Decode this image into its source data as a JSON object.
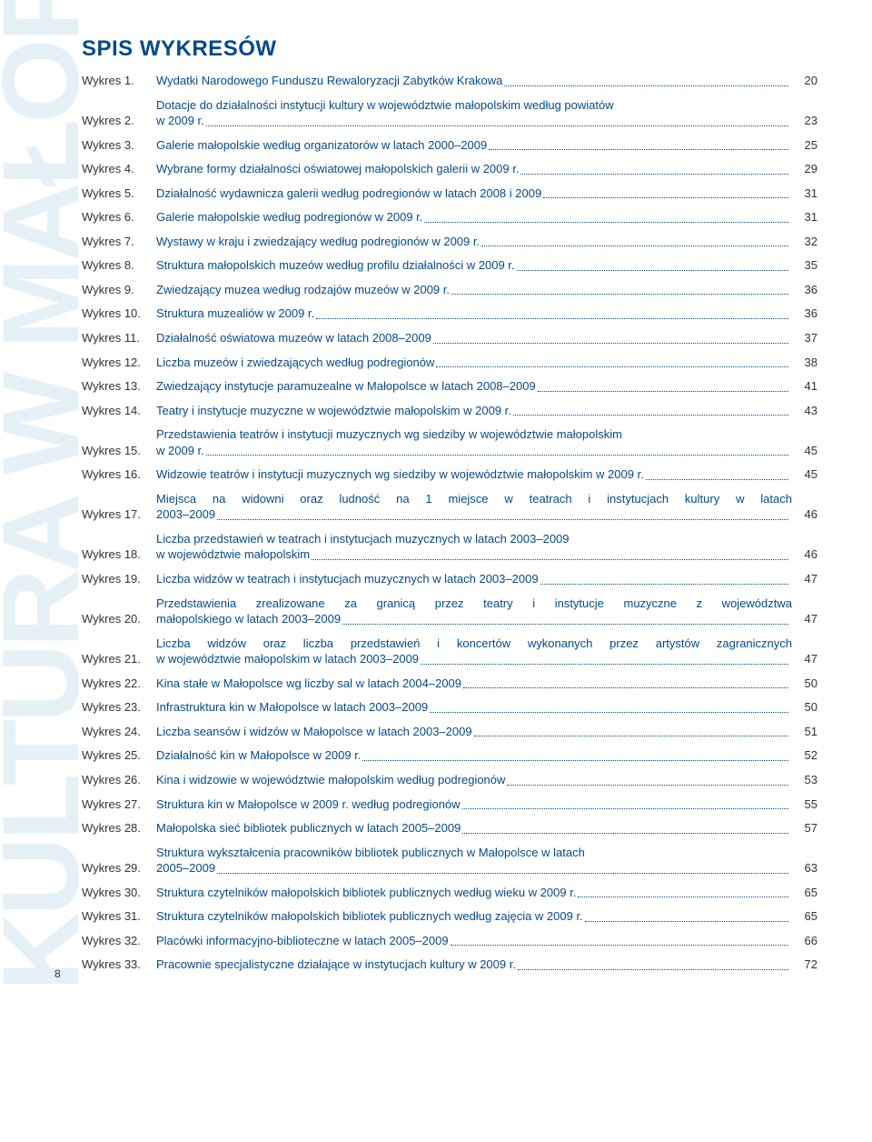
{
  "vertical_text": "KULTURA W MAŁOPOLSCE",
  "title": "SPIS WYKRESÓW",
  "label_prefix": "Wykres",
  "page_number": "8",
  "colors": {
    "heading": "#054a8a",
    "entry_label": "#054a8a",
    "prefix": "#333",
    "leader": "#054a8a",
    "pagecol": "#333"
  },
  "entries": [
    {
      "n": "1.",
      "desc": "Wydatki Narodowego Funduszu Rewaloryzacji Zabytków Krakowa",
      "pg": "20"
    },
    {
      "n": "2.",
      "desc": "Dotacje do działalności instytucji kultury w województwie małopolskim według powiatów",
      "desc2": "w 2009 r.",
      "pg": "23"
    },
    {
      "n": "3.",
      "desc": "Galerie małopolskie według organizatorów w latach 2000–2009",
      "pg": "25"
    },
    {
      "n": "4.",
      "desc": "Wybrane formy działalności oświatowej małopolskich galerii w 2009 r.",
      "pg": "29"
    },
    {
      "n": "5.",
      "desc": "Działalność wydawnicza galerii według podregionów w latach 2008 i 2009",
      "pg": "31"
    },
    {
      "n": "6.",
      "desc": "Galerie małopolskie według podregionów w 2009 r.",
      "pg": "31"
    },
    {
      "n": "7.",
      "desc": "Wystawy w kraju i zwiedzający według podregionów w 2009 r.",
      "pg": "32"
    },
    {
      "n": "8.",
      "desc": "Struktura małopolskich muzeów według profilu działalności w 2009 r.",
      "pg": "35"
    },
    {
      "n": "9.",
      "desc": "Zwiedzający muzea według rodzajów muzeów w 2009 r.",
      "pg": "36"
    },
    {
      "n": "10.",
      "desc": "Struktura muzealiów w 2009 r.",
      "pg": "36"
    },
    {
      "n": "11.",
      "desc": "Działalność oświatowa muzeów w latach 2008–2009",
      "pg": "37"
    },
    {
      "n": "12.",
      "desc": "Liczba muzeów i zwiedzających według podregionów",
      "pg": "38"
    },
    {
      "n": "13.",
      "desc": "Zwiedzający instytucje paramuzealne w Małopolsce w latach 2008–2009",
      "pg": "41"
    },
    {
      "n": "14.",
      "desc": "Teatry i instytucje muzyczne w województwie małopolskim w 2009 r.",
      "pg": "43"
    },
    {
      "n": "15.",
      "desc": "Przedstawienia teatrów i instytucji muzycznych wg siedziby w województwie małopolskim",
      "desc2": "w 2009 r.",
      "pg": "45"
    },
    {
      "n": "16.",
      "desc": "Widzowie teatrów i instytucji muzycznych wg siedziby w województwie małopolskim w 2009 r.",
      "pg": "45",
      "tight": true
    },
    {
      "n": "17.",
      "desc": "Miejsca na widowni oraz ludność na 1 miejsce w teatrach i instytucjach kultury w latach",
      "desc2": "2003–2009",
      "pg": "46",
      "just": true
    },
    {
      "n": "18.",
      "desc": "Liczba przedstawień w teatrach i instytucjach muzycznych w latach 2003–2009",
      "desc2": "w województwie małopolskim",
      "pg": "46"
    },
    {
      "n": "19.",
      "desc": "Liczba widzów w teatrach i instytucjach muzycznych w latach 2003–2009",
      "pg": "47"
    },
    {
      "n": "20.",
      "desc": "Przedstawienia zrealizowane za granicą przez teatry i instytucje muzyczne z województwa",
      "desc2": "małopolskiego w latach 2003–2009",
      "pg": "47",
      "just": true
    },
    {
      "n": "21.",
      "desc": "Liczba widzów oraz liczba przedstawień i koncertów wykonanych przez artystów zagranicznych",
      "desc2": "w województwie małopolskim w latach 2003–2009",
      "pg": "47",
      "just": true
    },
    {
      "n": "22.",
      "desc": "Kina stałe w Małopolsce wg liczby sal w latach 2004–2009",
      "pg": "50"
    },
    {
      "n": "23.",
      "desc": "Infrastruktura kin w Małopolsce w latach 2003–2009",
      "pg": "50"
    },
    {
      "n": "24.",
      "desc": "Liczba seansów i widzów w Małopolsce w latach 2003–2009",
      "pg": "51"
    },
    {
      "n": "25.",
      "desc": "Działalność kin w Małopolsce w 2009 r.",
      "pg": "52"
    },
    {
      "n": "26.",
      "desc": "Kina i widzowie w województwie małopolskim według podregionów",
      "pg": "53"
    },
    {
      "n": "27.",
      "desc": "Struktura kin w Małopolsce w 2009 r. według podregionów",
      "pg": "55"
    },
    {
      "n": "28.",
      "desc": "Małopolska sieć bibliotek publicznych w latach 2005–2009",
      "pg": "57"
    },
    {
      "n": "29.",
      "desc": "Struktura wykształcenia pracowników bibliotek publicznych w Małopolsce w latach",
      "desc2": "2005–2009",
      "pg": "63"
    },
    {
      "n": "30.",
      "desc": "Struktura czytelników małopolskich bibliotek publicznych według wieku w 2009 r.",
      "pg": "65"
    },
    {
      "n": "31.",
      "desc": "Struktura czytelników małopolskich bibliotek publicznych według zajęcia w 2009 r.",
      "pg": "65"
    },
    {
      "n": "32.",
      "desc": "Placówki informacyjno-biblioteczne w latach 2005–2009",
      "pg": "66"
    },
    {
      "n": "33.",
      "desc": "Pracownie specjalistyczne działające w instytucjach kultury w 2009 r.",
      "pg": "72"
    }
  ]
}
